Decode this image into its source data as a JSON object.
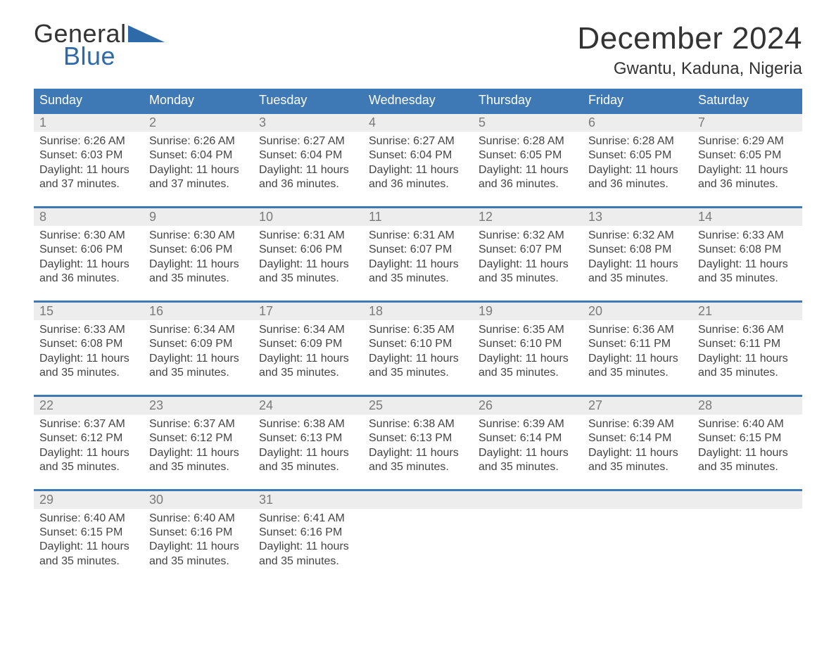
{
  "logo": {
    "topText": "General",
    "bottomText": "Blue",
    "shapeColor": "#2f6aa8"
  },
  "title": "December 2024",
  "location": "Gwantu, Kaduna, Nigeria",
  "colors": {
    "headerBg": "#3e79b5",
    "headerText": "#ffffff",
    "stripeBg": "#ededed",
    "dayNumText": "#7a7a7a",
    "bodyText": "#444444",
    "weekBorder": "#3e79b5",
    "background": "#ffffff",
    "titleText": "#333333"
  },
  "typography": {
    "titleFontSize": 44,
    "locationFontSize": 24,
    "dowFontSize": 18,
    "dayNumFontSize": 18,
    "detailFontSize": 16,
    "fontFamily": "Arial, Helvetica, sans-serif"
  },
  "daysOfWeek": [
    "Sunday",
    "Monday",
    "Tuesday",
    "Wednesday",
    "Thursday",
    "Friday",
    "Saturday"
  ],
  "weeks": [
    [
      {
        "day": "1",
        "sunrise": "Sunrise: 6:26 AM",
        "sunset": "Sunset: 6:03 PM",
        "daylight1": "Daylight: 11 hours",
        "daylight2": "and 37 minutes."
      },
      {
        "day": "2",
        "sunrise": "Sunrise: 6:26 AM",
        "sunset": "Sunset: 6:04 PM",
        "daylight1": "Daylight: 11 hours",
        "daylight2": "and 37 minutes."
      },
      {
        "day": "3",
        "sunrise": "Sunrise: 6:27 AM",
        "sunset": "Sunset: 6:04 PM",
        "daylight1": "Daylight: 11 hours",
        "daylight2": "and 36 minutes."
      },
      {
        "day": "4",
        "sunrise": "Sunrise: 6:27 AM",
        "sunset": "Sunset: 6:04 PM",
        "daylight1": "Daylight: 11 hours",
        "daylight2": "and 36 minutes."
      },
      {
        "day": "5",
        "sunrise": "Sunrise: 6:28 AM",
        "sunset": "Sunset: 6:05 PM",
        "daylight1": "Daylight: 11 hours",
        "daylight2": "and 36 minutes."
      },
      {
        "day": "6",
        "sunrise": "Sunrise: 6:28 AM",
        "sunset": "Sunset: 6:05 PM",
        "daylight1": "Daylight: 11 hours",
        "daylight2": "and 36 minutes."
      },
      {
        "day": "7",
        "sunrise": "Sunrise: 6:29 AM",
        "sunset": "Sunset: 6:05 PM",
        "daylight1": "Daylight: 11 hours",
        "daylight2": "and 36 minutes."
      }
    ],
    [
      {
        "day": "8",
        "sunrise": "Sunrise: 6:30 AM",
        "sunset": "Sunset: 6:06 PM",
        "daylight1": "Daylight: 11 hours",
        "daylight2": "and 36 minutes."
      },
      {
        "day": "9",
        "sunrise": "Sunrise: 6:30 AM",
        "sunset": "Sunset: 6:06 PM",
        "daylight1": "Daylight: 11 hours",
        "daylight2": "and 35 minutes."
      },
      {
        "day": "10",
        "sunrise": "Sunrise: 6:31 AM",
        "sunset": "Sunset: 6:06 PM",
        "daylight1": "Daylight: 11 hours",
        "daylight2": "and 35 minutes."
      },
      {
        "day": "11",
        "sunrise": "Sunrise: 6:31 AM",
        "sunset": "Sunset: 6:07 PM",
        "daylight1": "Daylight: 11 hours",
        "daylight2": "and 35 minutes."
      },
      {
        "day": "12",
        "sunrise": "Sunrise: 6:32 AM",
        "sunset": "Sunset: 6:07 PM",
        "daylight1": "Daylight: 11 hours",
        "daylight2": "and 35 minutes."
      },
      {
        "day": "13",
        "sunrise": "Sunrise: 6:32 AM",
        "sunset": "Sunset: 6:08 PM",
        "daylight1": "Daylight: 11 hours",
        "daylight2": "and 35 minutes."
      },
      {
        "day": "14",
        "sunrise": "Sunrise: 6:33 AM",
        "sunset": "Sunset: 6:08 PM",
        "daylight1": "Daylight: 11 hours",
        "daylight2": "and 35 minutes."
      }
    ],
    [
      {
        "day": "15",
        "sunrise": "Sunrise: 6:33 AM",
        "sunset": "Sunset: 6:08 PM",
        "daylight1": "Daylight: 11 hours",
        "daylight2": "and 35 minutes."
      },
      {
        "day": "16",
        "sunrise": "Sunrise: 6:34 AM",
        "sunset": "Sunset: 6:09 PM",
        "daylight1": "Daylight: 11 hours",
        "daylight2": "and 35 minutes."
      },
      {
        "day": "17",
        "sunrise": "Sunrise: 6:34 AM",
        "sunset": "Sunset: 6:09 PM",
        "daylight1": "Daylight: 11 hours",
        "daylight2": "and 35 minutes."
      },
      {
        "day": "18",
        "sunrise": "Sunrise: 6:35 AM",
        "sunset": "Sunset: 6:10 PM",
        "daylight1": "Daylight: 11 hours",
        "daylight2": "and 35 minutes."
      },
      {
        "day": "19",
        "sunrise": "Sunrise: 6:35 AM",
        "sunset": "Sunset: 6:10 PM",
        "daylight1": "Daylight: 11 hours",
        "daylight2": "and 35 minutes."
      },
      {
        "day": "20",
        "sunrise": "Sunrise: 6:36 AM",
        "sunset": "Sunset: 6:11 PM",
        "daylight1": "Daylight: 11 hours",
        "daylight2": "and 35 minutes."
      },
      {
        "day": "21",
        "sunrise": "Sunrise: 6:36 AM",
        "sunset": "Sunset: 6:11 PM",
        "daylight1": "Daylight: 11 hours",
        "daylight2": "and 35 minutes."
      }
    ],
    [
      {
        "day": "22",
        "sunrise": "Sunrise: 6:37 AM",
        "sunset": "Sunset: 6:12 PM",
        "daylight1": "Daylight: 11 hours",
        "daylight2": "and 35 minutes."
      },
      {
        "day": "23",
        "sunrise": "Sunrise: 6:37 AM",
        "sunset": "Sunset: 6:12 PM",
        "daylight1": "Daylight: 11 hours",
        "daylight2": "and 35 minutes."
      },
      {
        "day": "24",
        "sunrise": "Sunrise: 6:38 AM",
        "sunset": "Sunset: 6:13 PM",
        "daylight1": "Daylight: 11 hours",
        "daylight2": "and 35 minutes."
      },
      {
        "day": "25",
        "sunrise": "Sunrise: 6:38 AM",
        "sunset": "Sunset: 6:13 PM",
        "daylight1": "Daylight: 11 hours",
        "daylight2": "and 35 minutes."
      },
      {
        "day": "26",
        "sunrise": "Sunrise: 6:39 AM",
        "sunset": "Sunset: 6:14 PM",
        "daylight1": "Daylight: 11 hours",
        "daylight2": "and 35 minutes."
      },
      {
        "day": "27",
        "sunrise": "Sunrise: 6:39 AM",
        "sunset": "Sunset: 6:14 PM",
        "daylight1": "Daylight: 11 hours",
        "daylight2": "and 35 minutes."
      },
      {
        "day": "28",
        "sunrise": "Sunrise: 6:40 AM",
        "sunset": "Sunset: 6:15 PM",
        "daylight1": "Daylight: 11 hours",
        "daylight2": "and 35 minutes."
      }
    ],
    [
      {
        "day": "29",
        "sunrise": "Sunrise: 6:40 AM",
        "sunset": "Sunset: 6:15 PM",
        "daylight1": "Daylight: 11 hours",
        "daylight2": "and 35 minutes."
      },
      {
        "day": "30",
        "sunrise": "Sunrise: 6:40 AM",
        "sunset": "Sunset: 6:16 PM",
        "daylight1": "Daylight: 11 hours",
        "daylight2": "and 35 minutes."
      },
      {
        "day": "31",
        "sunrise": "Sunrise: 6:41 AM",
        "sunset": "Sunset: 6:16 PM",
        "daylight1": "Daylight: 11 hours",
        "daylight2": "and 35 minutes."
      },
      null,
      null,
      null,
      null
    ]
  ]
}
